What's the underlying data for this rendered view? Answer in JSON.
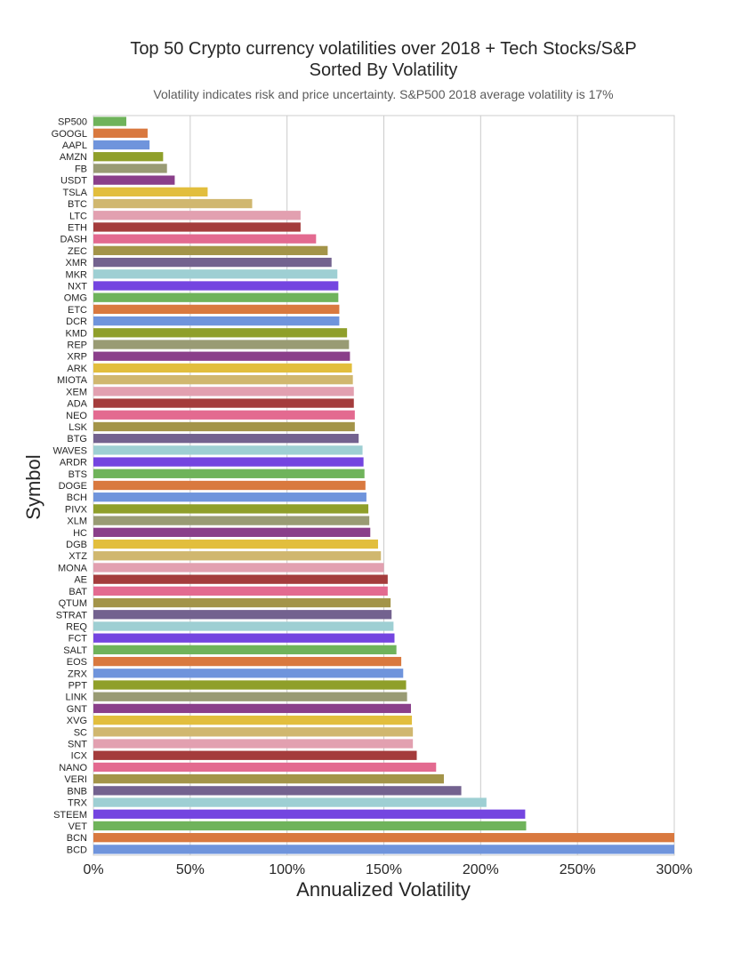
{
  "chart_data": {
    "type": "bar",
    "orientation": "horizontal",
    "title_line1": "Top 50 Crypto currency volatilities over 2018 + Tech Stocks/S&P",
    "title_line2": "Sorted By Volatility",
    "subtitle": "Volatility indicates risk and price uncertainty. S&P500 2018 average volatility is 17%",
    "xlabel": "Annualized Volatility",
    "ylabel": "Symbol",
    "xlim": [
      0,
      3.0
    ],
    "xticks": [
      "0%",
      "50%",
      "100%",
      "150%",
      "200%",
      "250%",
      "300%"
    ],
    "grid": true,
    "categories": [
      "SP500",
      "GOOGL",
      "AAPL",
      "AMZN",
      "FB",
      "USDT",
      "TSLA",
      "BTC",
      "LTC",
      "ETH",
      "DASH",
      "ZEC",
      "XMR",
      "MKR",
      "NXT",
      "OMG",
      "ETC",
      "DCR",
      "KMD",
      "REP",
      "XRP",
      "ARK",
      "MIOTA",
      "XEM",
      "ADA",
      "NEO",
      "LSK",
      "BTG",
      "WAVES",
      "ARDR",
      "BTS",
      "DOGE",
      "BCH",
      "PIVX",
      "XLM",
      "HC",
      "DGB",
      "XTZ",
      "MONA",
      "AE",
      "BAT",
      "QTUM",
      "STRAT",
      "REQ",
      "FCT",
      "SALT",
      "EOS",
      "ZRX",
      "PPT",
      "LINK",
      "GNT",
      "XVG",
      "SC",
      "SNT",
      "ICX",
      "NANO",
      "VERI",
      "BNB",
      "TRX",
      "STEEM",
      "VET",
      "BCN",
      "BCD"
    ],
    "values": [
      0.17,
      0.28,
      0.29,
      0.36,
      0.38,
      0.42,
      0.59,
      0.82,
      1.07,
      1.07,
      1.15,
      1.21,
      1.23,
      1.26,
      1.265,
      1.265,
      1.27,
      1.27,
      1.31,
      1.32,
      1.325,
      1.335,
      1.34,
      1.345,
      1.345,
      1.35,
      1.35,
      1.37,
      1.39,
      1.395,
      1.4,
      1.405,
      1.41,
      1.42,
      1.425,
      1.43,
      1.47,
      1.485,
      1.5,
      1.52,
      1.52,
      1.535,
      1.54,
      1.55,
      1.555,
      1.565,
      1.59,
      1.6,
      1.615,
      1.62,
      1.64,
      1.645,
      1.65,
      1.65,
      1.67,
      1.77,
      1.81,
      1.9,
      2.03,
      2.23,
      2.235,
      3.0,
      3.0
    ],
    "palette": [
      "#6fb35b",
      "#d9793f",
      "#6f94dc",
      "#8f9f2a",
      "#999b74",
      "#8a3f8a",
      "#e2be3d",
      "#d0b76f",
      "#e2a0b0",
      "#a43c3c",
      "#e36a90",
      "#a39449",
      "#73628f",
      "#9ecfd3",
      "#7445e0"
    ]
  }
}
